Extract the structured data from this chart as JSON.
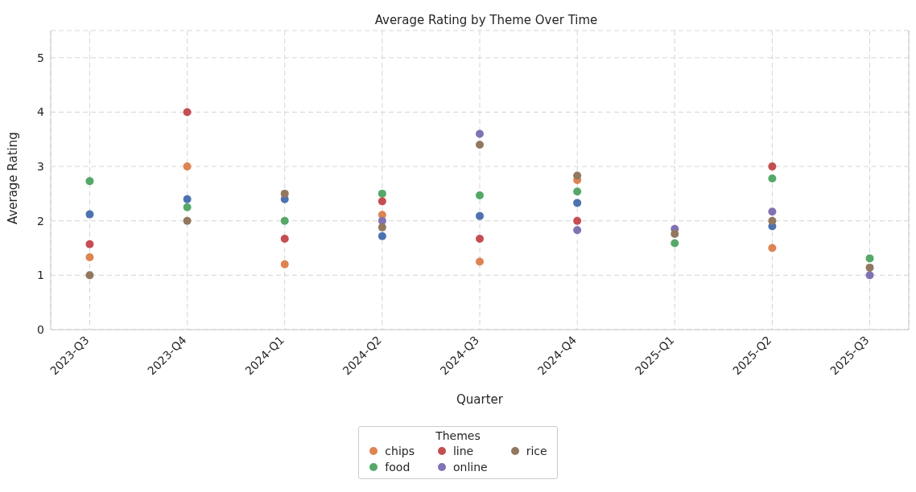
{
  "chart_data": {
    "type": "scatter",
    "title": "Average Rating by Theme Over Time",
    "xlabel": "Quarter",
    "ylabel": "Average Rating",
    "legend_title": "Themes",
    "categories": [
      "2023-Q3",
      "2023-Q4",
      "2024-Q1",
      "2024-Q2",
      "2024-Q3",
      "2024-Q4",
      "2025-Q1",
      "2025-Q2",
      "2025-Q3"
    ],
    "series": [
      {
        "color": "#4c72b0",
        "values": [
          2.12,
          2.4,
          2.4,
          1.72,
          2.09,
          2.33,
          null,
          1.9,
          null
        ]
      },
      {
        "name": "chips",
        "color": "#dd8452",
        "values": [
          1.33,
          3.0,
          1.2,
          2.11,
          1.25,
          2.75,
          null,
          1.5,
          null
        ]
      },
      {
        "name": "food",
        "color": "#55a868",
        "values": [
          2.73,
          2.25,
          2.0,
          2.5,
          2.47,
          2.54,
          1.59,
          2.78,
          1.31
        ]
      },
      {
        "name": "line",
        "color": "#c44e52",
        "values": [
          1.57,
          4.0,
          1.67,
          2.36,
          1.67,
          2.0,
          null,
          3.0,
          null
        ]
      },
      {
        "name": "online",
        "color": "#8172b3",
        "values": [
          null,
          null,
          null,
          2.0,
          3.6,
          1.83,
          1.85,
          2.17,
          1.0
        ]
      },
      {
        "name": "rice",
        "color": "#937860",
        "values": [
          1.0,
          2.0,
          2.5,
          1.88,
          3.4,
          2.83,
          1.76,
          2.0,
          1.14
        ]
      }
    ],
    "ylim": [
      0,
      5.5
    ],
    "yticks": [
      0,
      1,
      2,
      3,
      4,
      5
    ],
    "grid": true,
    "legend": "bottom",
    "marker": "circle"
  }
}
